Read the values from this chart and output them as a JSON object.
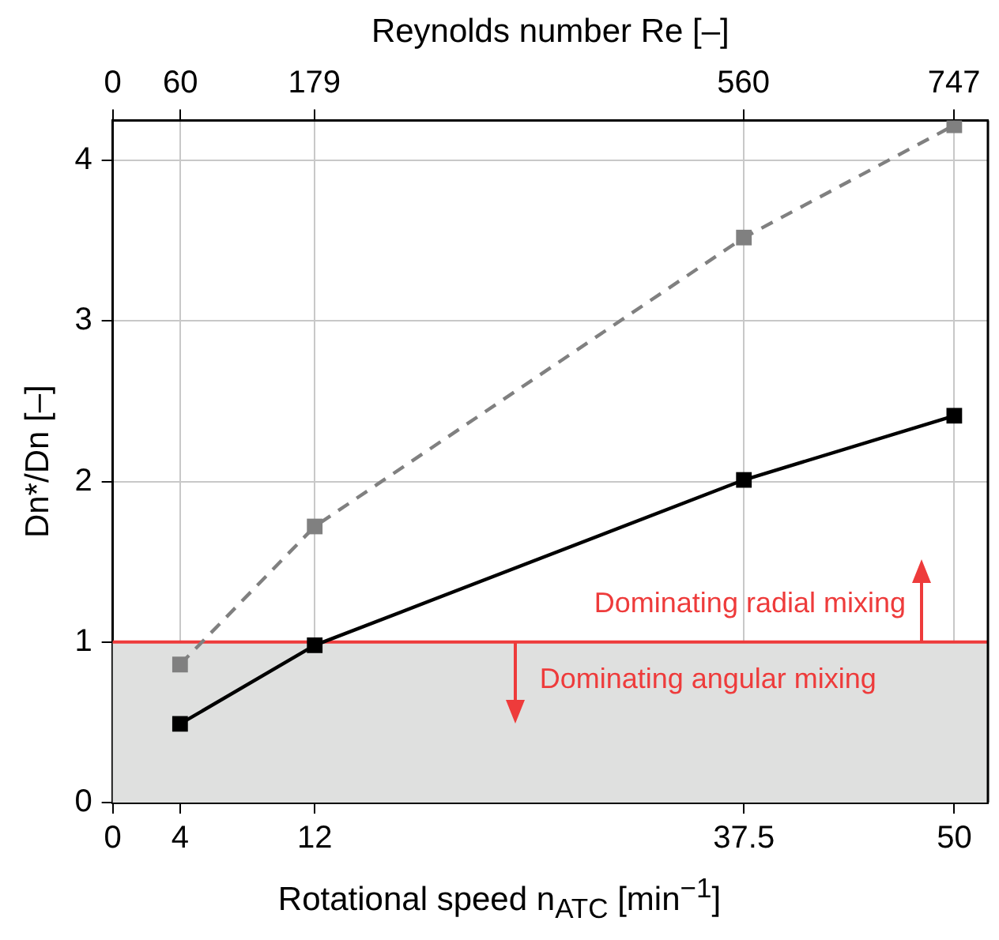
{
  "chart_data": {
    "type": "line",
    "x2label": "Reynolds number Re [–]",
    "xlabel": "Rotational speed n$_{ATC}$ [min$^{−1}$]",
    "ylabel": "Dn*/Dn [–]",
    "x": [
      4,
      12,
      37.5,
      50
    ],
    "series": [
      {
        "color": "#808080",
        "values": [
          0.86,
          1.72,
          3.52,
          4.22
        ],
        "line_style": "dashed",
        "marker": "square"
      },
      {
        "color": "#000000",
        "values": [
          0.49,
          0.98,
          2.01,
          2.41
        ],
        "line_style": "solid",
        "marker": "square"
      }
    ],
    "xlim": [
      0,
      52
    ],
    "xticks": [
      0,
      4,
      12,
      37.5,
      50
    ],
    "x2lim": [
      0,
      777
    ],
    "x2ticks": [
      0,
      60,
      179,
      560,
      747
    ],
    "ylim": [
      0,
      4.25
    ],
    "yticks": [
      0,
      1,
      2,
      3,
      4
    ],
    "grid": true,
    "legend": false,
    "ref_lines": [
      {
        "axis": "y",
        "value": 1,
        "color": "#ee3b3b"
      }
    ],
    "bands": [
      {
        "axis": "y",
        "from": 0,
        "to": 1,
        "color": "#dfe0df"
      }
    ],
    "annotations": [
      "Dominating radial mixing",
      "Dominating angular mixing"
    ]
  }
}
